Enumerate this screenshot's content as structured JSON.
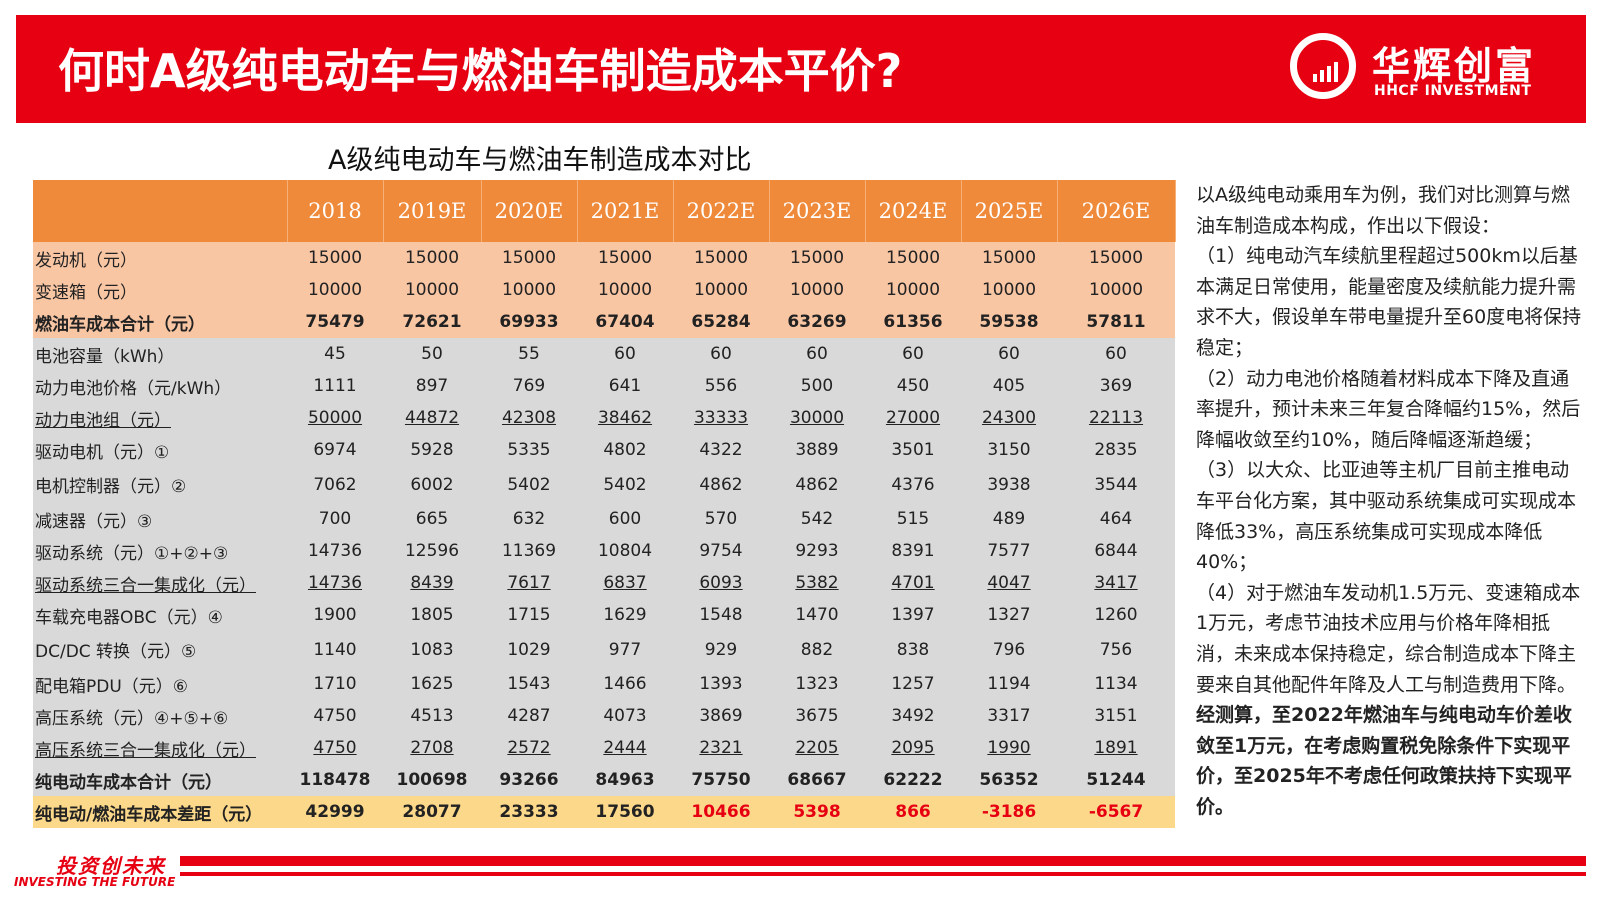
{
  "header": {
    "title": "何时A级纯电动车与燃油车制造成本平价?",
    "logo_cn": "华辉创富",
    "logo_en": "HHCF INVESTMENT"
  },
  "table": {
    "title": "A级纯电动车与燃油车制造成本对比",
    "years": [
      "2018",
      "2019E",
      "2020E",
      "2021E",
      "2022E",
      "2023E",
      "2024E",
      "2025E",
      "2026E"
    ],
    "rows": [
      {
        "label": "发动机（元）",
        "values": [
          "15000",
          "15000",
          "15000",
          "15000",
          "15000",
          "15000",
          "15000",
          "15000",
          "15000"
        ]
      },
      {
        "label": "变速箱（元）",
        "values": [
          "10000",
          "10000",
          "10000",
          "10000",
          "10000",
          "10000",
          "10000",
          "10000",
          "10000"
        ]
      },
      {
        "label": "燃油车成本合计（元）",
        "values": [
          "75479",
          "72621",
          "69933",
          "67404",
          "65284",
          "63269",
          "61356",
          "59538",
          "57811"
        ]
      },
      {
        "label": "电池容量（kWh）",
        "values": [
          "45",
          "50",
          "55",
          "60",
          "60",
          "60",
          "60",
          "60",
          "60"
        ]
      },
      {
        "label": "动力电池价格（元/kWh）",
        "values": [
          "1111",
          "897",
          "769",
          "641",
          "556",
          "500",
          "450",
          "405",
          "369"
        ]
      },
      {
        "label": "动力电池组（元）",
        "values": [
          "50000",
          "44872",
          "42308",
          "38462",
          "33333",
          "30000",
          "27000",
          "24300",
          "22113"
        ]
      },
      {
        "label": "驱动电机（元）①",
        "values": [
          "6974",
          "5928",
          "5335",
          "4802",
          "4322",
          "3889",
          "3501",
          "3150",
          "2835"
        ]
      },
      {
        "label": "电机控制器（元）②",
        "values": [
          "7062",
          "6002",
          "5402",
          "5402",
          "4862",
          "4862",
          "4376",
          "3938",
          "3544"
        ]
      },
      {
        "label": "减速器（元）③",
        "values": [
          "700",
          "665",
          "632",
          "600",
          "570",
          "542",
          "515",
          "489",
          "464"
        ]
      },
      {
        "label": "驱动系统（元）①+②+③",
        "values": [
          "14736",
          "12596",
          "11369",
          "10804",
          "9754",
          "9293",
          "8391",
          "7577",
          "6844"
        ]
      },
      {
        "label": "驱动系统三合一集成化（元）",
        "values": [
          "14736",
          "8439",
          "7617",
          "6837",
          "6093",
          "5382",
          "4701",
          "4047",
          "3417"
        ]
      },
      {
        "label": "车载充电器OBC（元）④",
        "values": [
          "1900",
          "1805",
          "1715",
          "1629",
          "1548",
          "1470",
          "1397",
          "1327",
          "1260"
        ]
      },
      {
        "label": "DC/DC 转换（元）⑤",
        "values": [
          "1140",
          "1083",
          "1029",
          "977",
          "929",
          "882",
          "838",
          "796",
          "756"
        ]
      },
      {
        "label": "配电箱PDU（元）⑥",
        "values": [
          "1710",
          "1625",
          "1543",
          "1466",
          "1393",
          "1323",
          "1257",
          "1194",
          "1134"
        ]
      },
      {
        "label": "高压系统（元）④+⑤+⑥",
        "values": [
          "4750",
          "4513",
          "4287",
          "4073",
          "3869",
          "3675",
          "3492",
          "3317",
          "3151"
        ]
      },
      {
        "label": "高压系统三合一集成化（元）",
        "values": [
          "4750",
          "2708",
          "2572",
          "2444",
          "2321",
          "2205",
          "2095",
          "1990",
          "1891"
        ]
      },
      {
        "label": "纯电动车成本合计（元）",
        "values": [
          "118478",
          "100698",
          "93266",
          "84963",
          "75750",
          "68667",
          "62222",
          "56352",
          "51244"
        ]
      },
      {
        "label": "纯电动/燃油车成本差距（元）",
        "values": [
          "42999",
          "28077",
          "23333",
          "17560",
          "10466",
          "5398",
          "866",
          "-3186",
          "-6567"
        ]
      }
    ]
  },
  "notes": [
    "以A级纯电动乘用车为例，我们对比测算与燃油车制造成本构成，作出以下假设：",
    "（1）纯电动汽车续航里程超过500km以后基本满足日常使用，能量密度及续航能力提升需求不大，假设单车带电量提升至60度电将保持稳定；",
    "（2）动力电池价格随着材料成本下降及直通率提升，预计未来三年复合降幅约15%，然后降幅收敛至约10%，随后降幅逐渐趋缓；",
    "（3）以大众、比亚迪等主机厂目前主推电动车平台化方案，其中驱动系统集成可实现成本降低33%，高压系统集成可实现成本降低40%；",
    "（4）对于燃油车发动机1.5万元、变速箱成本1万元，考虑节油技术应用与价格年降相抵消，未来成本保持稳定，综合制造成本下降主要来自其他配件年降及人工与制造费用下降。",
    "经测算，至2022年燃油车与纯电动车价差收敛至1万元，在考虑购置税免除条件下实现平价，至2025年不考虑任何政策扶持下实现平价。"
  ],
  "footer": {
    "slogan_cn": "投资创未来",
    "slogan_en": "INVESTING THE FUTURE"
  },
  "colors": {
    "brand_red": "#e60012",
    "header_orange": "#ef8a3b",
    "ice_rows": "#f9c6a4",
    "ev_rows": "#d9d9d9",
    "gap_row": "#fcd88a"
  }
}
